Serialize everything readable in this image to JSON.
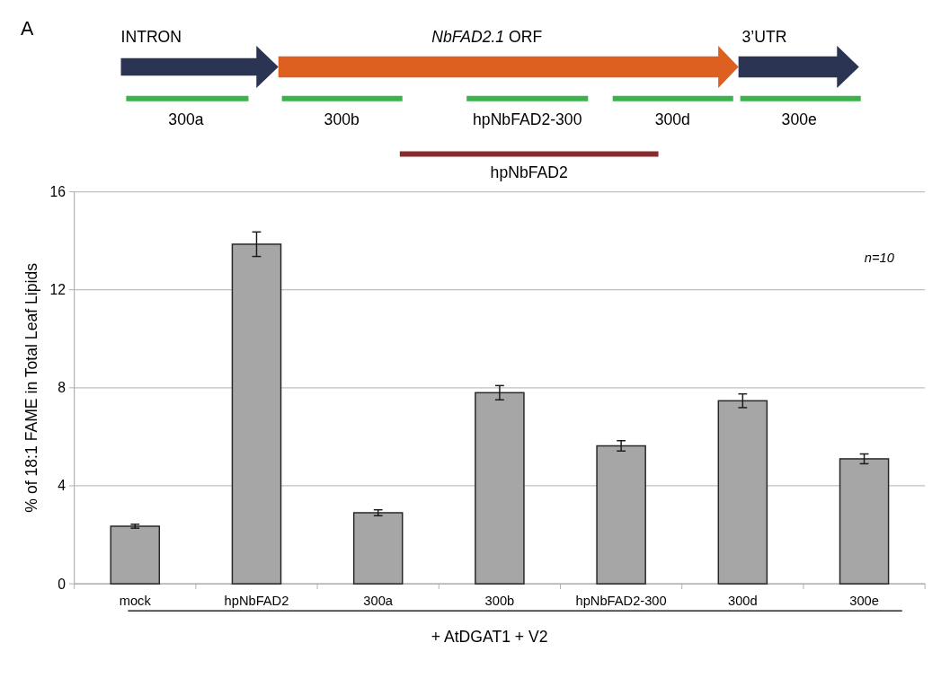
{
  "chart_data": {
    "type": "bar",
    "ylabel": "% of 18:1 FAME in Total Leaf Lipids",
    "xlabel": "+ AtDGAT1 + V2",
    "categories": [
      "mock",
      "hpNbFAD2",
      "300a",
      "300b",
      "hpNbFAD2-300",
      "300d",
      "300e"
    ],
    "values": [
      2.35,
      13.86,
      2.9,
      7.8,
      5.63,
      7.47,
      5.1
    ],
    "errors": [
      0.08,
      0.5,
      0.12,
      0.29,
      0.21,
      0.28,
      0.2
    ],
    "color": "#a6a6a6",
    "ylim": [
      0,
      16
    ],
    "yticks": [
      0,
      4,
      8,
      12,
      16
    ],
    "grid": "y",
    "annotations": [
      "A",
      "NbFAD2.1 ORF",
      "INTRON",
      "3’UTR",
      "300a",
      "300b",
      "hpNbFAD2-300",
      "300d",
      "300e",
      "hpNbFAD2",
      "n=10"
    ]
  }
}
